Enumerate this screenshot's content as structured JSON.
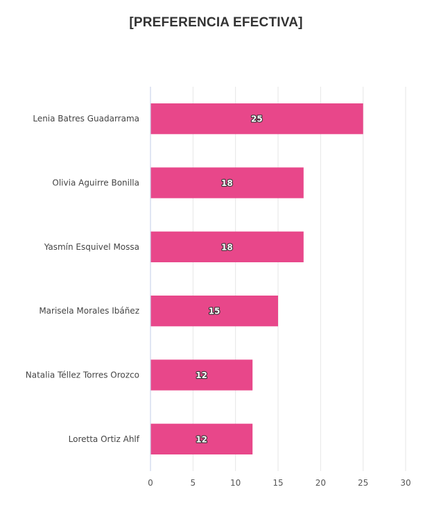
{
  "chart_data": {
    "type": "bar",
    "orientation": "horizontal",
    "title": "[PREFERENCIA EFECTIVA]",
    "categories": [
      "Lenia Batres Guadarrama",
      "Olivia Aguirre Bonilla",
      "Yasmín Esquivel Mossa",
      "Marisela Morales Ibáñez",
      "Natalia Téllez Torres Orozco",
      "Loretta Ortiz Ahlf"
    ],
    "values": [
      25,
      18,
      18,
      15,
      12,
      12
    ],
    "xlim": [
      0,
      30
    ],
    "xticks": [
      0,
      5,
      10,
      15,
      20,
      25,
      30
    ],
    "grid": true,
    "data_labels": true,
    "bar_color": "#e8478a"
  }
}
